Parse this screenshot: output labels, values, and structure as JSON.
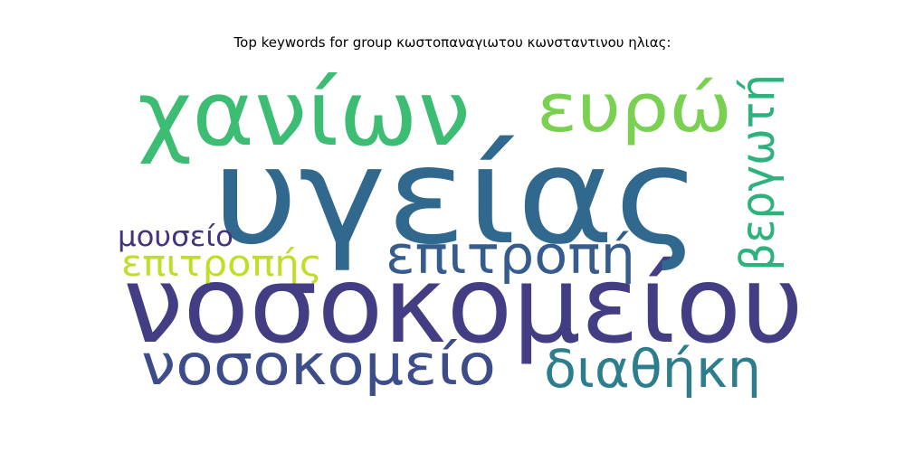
{
  "chart_data": {
    "type": "wordcloud",
    "title": "Top keywords for group κωστοπαναγιωτου κωνσταντινου ηλιας:",
    "words": [
      {
        "text": "νοσοκομείου",
        "weight": 1.0,
        "color": "#433d84"
      },
      {
        "text": "υγείας",
        "weight": 0.97,
        "color": "#31688e"
      },
      {
        "text": "χανίων",
        "weight": 0.7,
        "color": "#3dbc74"
      },
      {
        "text": "ευρώ",
        "weight": 0.52,
        "color": "#7ad151"
      },
      {
        "text": "νοσοκομείο",
        "weight": 0.44,
        "color": "#3d4d8a"
      },
      {
        "text": "επιτροπή",
        "weight": 0.41,
        "color": "#365c8d"
      },
      {
        "text": "διαθήκη",
        "weight": 0.4,
        "color": "#2c7e8e"
      },
      {
        "text": "βεργωτή",
        "weight": 0.36,
        "color": "#2db27d"
      },
      {
        "text": "επιτροπής",
        "weight": 0.28,
        "color": "#bddf26"
      },
      {
        "text": "μουσείο",
        "weight": 0.22,
        "color": "#46337e"
      }
    ]
  }
}
